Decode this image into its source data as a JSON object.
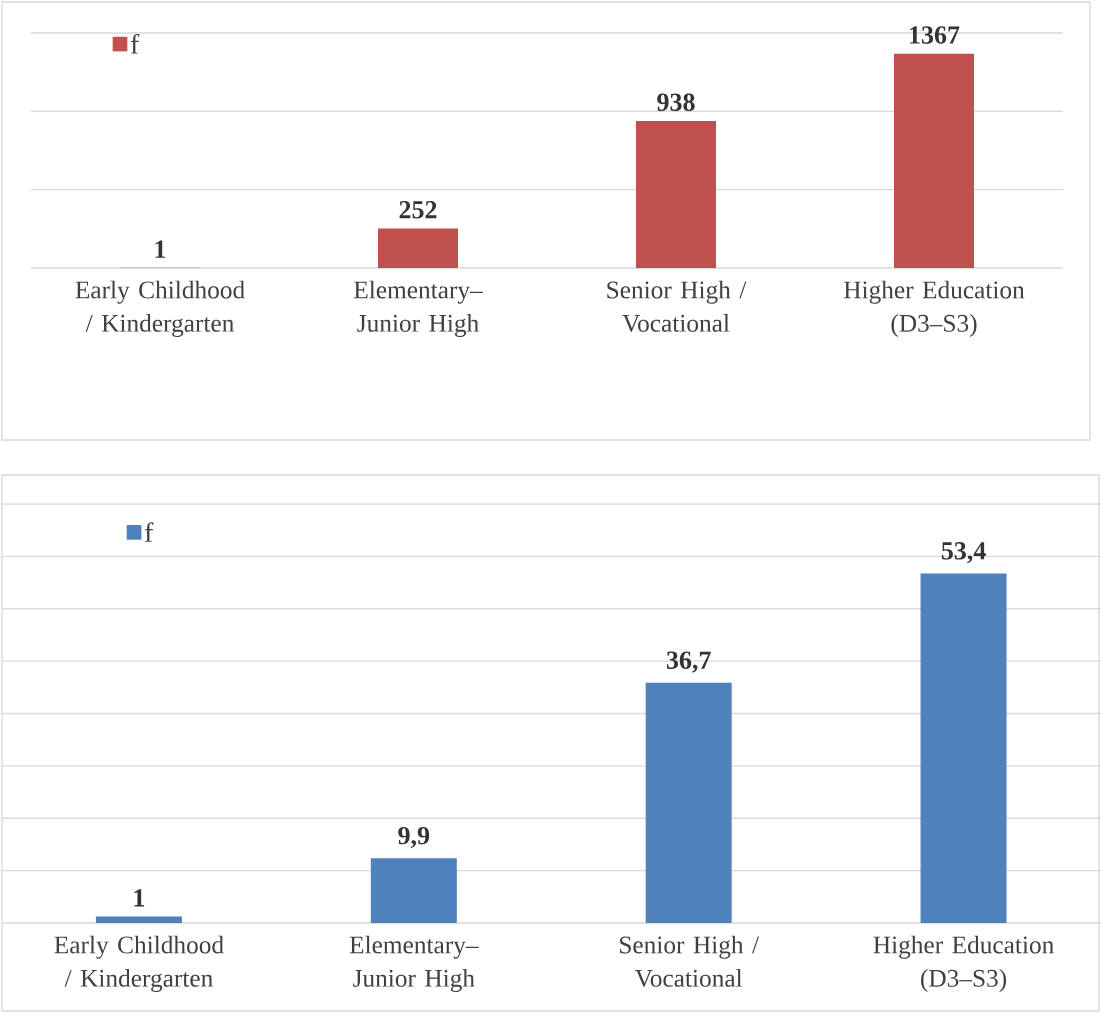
{
  "chart_data": [
    {
      "type": "bar",
      "categories": [
        "Early Childhood / Kindergarten",
        "Elementary–Junior High",
        "Senior High / Vocational",
        "Higher Education (D3–S3)"
      ],
      "series": [
        {
          "name": "f",
          "color": "#c0504d",
          "values": [
            1,
            252,
            938,
            1367
          ],
          "value_labels": [
            "1",
            "252",
            "938",
            "1367"
          ]
        }
      ],
      "ylim": [
        0,
        1500
      ],
      "yticks": [
        {
          "value": 0,
          "label": null
        },
        {
          "value": 500,
          "label": null
        },
        {
          "value": 1000,
          "label": null
        },
        {
          "value": 1500,
          "label": null
        }
      ],
      "grid": "y",
      "legend": "top left",
      "tick_labels": "x"
    },
    {
      "type": "bar",
      "categories": [
        "Early Childhood / Kindergarten",
        "Elementary–Junior High",
        "Senior High / Vocational",
        "Higher Education (D3–S3)"
      ],
      "series": [
        {
          "name": "f",
          "color": "#4f81bd",
          "values": [
            1,
            9.9,
            36.7,
            53.4
          ],
          "value_labels": [
            "1",
            "9,9",
            "36,7",
            "53,4"
          ]
        }
      ],
      "ylim": [
        0,
        64
      ],
      "yticks": [
        {
          "value": 0,
          "label": null
        },
        {
          "value": 8,
          "label": null
        },
        {
          "value": 16,
          "label": null
        },
        {
          "value": 24,
          "label": null
        },
        {
          "value": 32,
          "label": null
        },
        {
          "value": 40,
          "label": null
        },
        {
          "value": 48,
          "label": null
        },
        {
          "value": 56,
          "label": null
        },
        {
          "value": 64,
          "label": null
        }
      ],
      "grid": "y",
      "legend": "top left",
      "tick_labels": "x"
    }
  ]
}
